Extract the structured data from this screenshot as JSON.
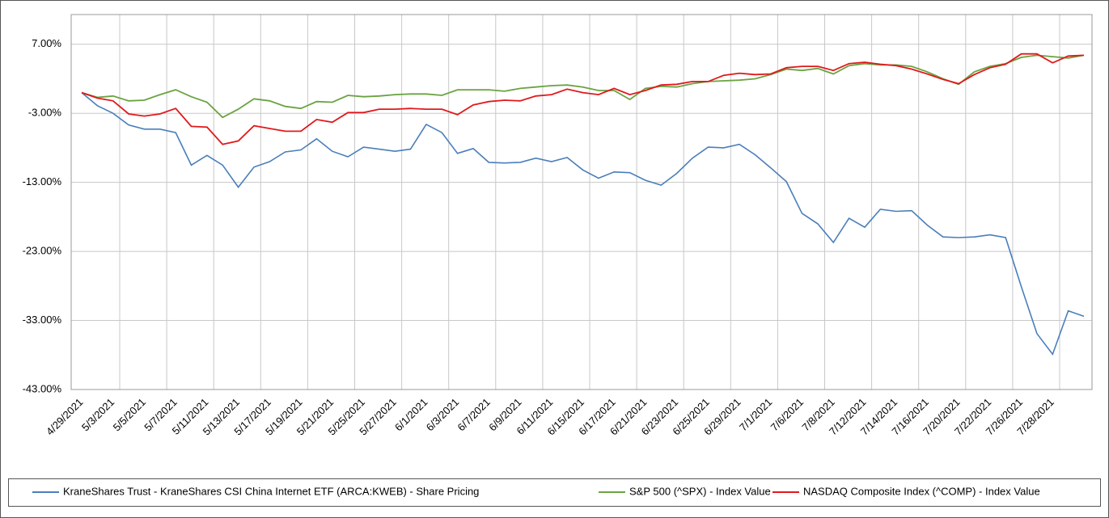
{
  "chart_data": {
    "type": "line",
    "categories": [
      "4/29/2021",
      null,
      "5/3/2021",
      null,
      "5/5/2021",
      null,
      "5/7/2021",
      null,
      "5/11/2021",
      null,
      "5/13/2021",
      null,
      "5/17/2021",
      null,
      "5/19/2021",
      null,
      "5/21/2021",
      null,
      "5/25/2021",
      null,
      "5/27/2021",
      null,
      "6/1/2021",
      null,
      "6/3/2021",
      null,
      "6/7/2021",
      null,
      "6/9/2021",
      null,
      "6/11/2021",
      null,
      "6/15/2021",
      null,
      "6/17/2021",
      null,
      "6/21/2021",
      null,
      "6/23/2021",
      null,
      "6/25/2021",
      null,
      "6/29/2021",
      null,
      "7/1/2021",
      null,
      "7/6/2021",
      null,
      "7/8/2021",
      null,
      "7/12/2021",
      null,
      "7/14/2021",
      null,
      "7/16/2021",
      null,
      "7/20/2021",
      null,
      "7/22/2021",
      null,
      "7/26/2021",
      null,
      "7/28/2021",
      null,
      null
    ],
    "series": [
      {
        "name": "KraneShares Trust - KraneShares CSI China Internet ETF (ARCA:KWEB) - Share Pricing",
        "color": "#4a7ebb",
        "values": [
          0,
          -1.9,
          -3.0,
          -4.7,
          -5.3,
          -5.3,
          -5.8,
          -10.5,
          -9.1,
          -10.5,
          -13.7,
          -10.8,
          -10.0,
          -8.6,
          -8.3,
          -6.7,
          -8.5,
          -9.3,
          -7.9,
          -8.2,
          -8.5,
          -8.2,
          -4.6,
          -5.8,
          -8.8,
          -8.1,
          -10.1,
          -10.2,
          -10.1,
          -9.5,
          -10.0,
          -9.4,
          -11.2,
          -12.4,
          -11.5,
          -11.6,
          -12.7,
          -13.4,
          -11.7,
          -9.5,
          -7.9,
          -8.0,
          -7.5,
          -9.0,
          -10.9,
          -12.9,
          -17.5,
          -19.0,
          -21.7,
          -18.2,
          -19.5,
          -16.9,
          -17.2,
          -17.1,
          -19.2,
          -20.9,
          -21.0,
          -20.9,
          -20.6,
          -21.0,
          -28.1,
          -34.9,
          -37.9,
          -31.6,
          -32.4
        ]
      },
      {
        "name": "S&P 500 (^SPX) - Index Value",
        "color": "#6aa341",
        "values": [
          0,
          -0.7,
          -0.5,
          -1.2,
          -1.1,
          -0.3,
          0.4,
          -0.6,
          -1.4,
          -3.6,
          -2.4,
          -0.9,
          -1.2,
          -2.0,
          -2.3,
          -1.3,
          -1.4,
          -0.4,
          -0.6,
          -0.5,
          -0.3,
          -0.2,
          -0.2,
          -0.4,
          0.4,
          0.4,
          0.4,
          0.2,
          0.6,
          0.8,
          1.0,
          1.1,
          0.8,
          0.3,
          0.3,
          -1.0,
          0.6,
          0.9,
          0.8,
          1.3,
          1.6,
          1.7,
          1.8,
          2.0,
          2.6,
          3.4,
          3.2,
          3.5,
          2.7,
          3.9,
          4.2,
          4.0,
          4.0,
          3.8,
          3.0,
          2.0,
          1.2,
          3.0,
          3.8,
          4.2,
          5.1,
          5.4,
          5.2,
          5.0,
          5.4
        ]
      },
      {
        "name": "NASDAQ Composite Index (^COMP) - Index Value",
        "color": "#e0191c",
        "values": [
          0,
          -0.8,
          -1.2,
          -3.1,
          -3.4,
          -3.1,
          -2.3,
          -4.9,
          -5.0,
          -7.5,
          -7.0,
          -4.8,
          -5.2,
          -5.6,
          -5.6,
          -3.9,
          -4.3,
          -2.9,
          -2.9,
          -2.4,
          -2.4,
          -2.3,
          -2.4,
          -2.4,
          -3.2,
          -1.8,
          -1.3,
          -1.1,
          -1.2,
          -0.5,
          -0.3,
          0.5,
          0.0,
          -0.3,
          0.6,
          -0.3,
          0.3,
          1.1,
          1.2,
          1.6,
          1.6,
          2.5,
          2.8,
          2.6,
          2.7,
          3.6,
          3.8,
          3.8,
          3.2,
          4.2,
          4.4,
          4.1,
          3.9,
          3.4,
          2.7,
          1.9,
          1.3,
          2.6,
          3.6,
          4.1,
          5.6,
          5.6,
          4.3,
          5.3,
          5.4
        ]
      }
    ],
    "ylim": [
      -43,
      11.3
    ],
    "yticks": [
      {
        "value": 7,
        "label": "7.00%"
      },
      {
        "value": -3,
        "label": "-3.00%"
      },
      {
        "value": -13,
        "label": "-13.00%"
      },
      {
        "value": -23,
        "label": "-23.00%"
      },
      {
        "value": -33,
        "label": "-33.00%"
      },
      {
        "value": -43,
        "label": "-43.00%"
      }
    ],
    "grid": true,
    "legend": "bottom"
  }
}
